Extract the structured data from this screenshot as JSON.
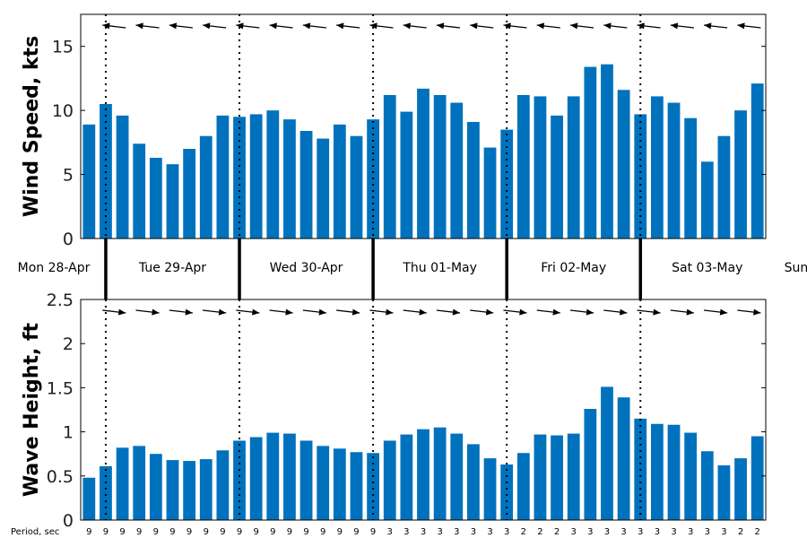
{
  "colors": {
    "bar": "#0072BD",
    "axis": "#000000",
    "arrow": "#000000"
  },
  "chart_data": [
    {
      "type": "bar",
      "ylabel": "Wind Speed, kts",
      "ylim": [
        0,
        17.5
      ],
      "yticks": [
        0,
        5,
        10,
        15
      ],
      "values": [
        8.9,
        10.5,
        9.6,
        7.4,
        6.3,
        5.8,
        7.0,
        8.0,
        9.6,
        9.5,
        9.7,
        10.0,
        9.3,
        8.4,
        7.8,
        8.9,
        8.0,
        9.3,
        11.2,
        9.9,
        11.7,
        11.2,
        10.6,
        9.1,
        7.1,
        8.5,
        11.2,
        11.1,
        9.6,
        11.1,
        13.4,
        13.6,
        11.6,
        9.7,
        11.1,
        10.6,
        9.4,
        6.0,
        8.0,
        10.0,
        12.1
      ],
      "direction_arrows": "arrows at top of panel, pointing roughly west (from east)"
    },
    {
      "type": "bar",
      "ylabel": "Wave Height, ft",
      "ylim": [
        0,
        2.5
      ],
      "yticks": [
        "0",
        "0.5",
        "1",
        "1.5",
        "2",
        "2.5"
      ],
      "values": [
        0.48,
        0.61,
        0.82,
        0.84,
        0.75,
        0.68,
        0.67,
        0.69,
        0.79,
        0.9,
        0.94,
        0.99,
        0.98,
        0.9,
        0.84,
        0.81,
        0.77,
        0.76,
        0.9,
        0.97,
        1.03,
        1.05,
        0.98,
        0.86,
        0.7,
        0.63,
        0.76,
        0.97,
        0.96,
        0.98,
        1.26,
        1.51,
        1.39,
        1.15,
        1.09,
        1.08,
        0.99,
        0.78,
        0.62,
        0.7,
        0.95
      ],
      "direction_arrows": "arrows at top of panel, pointing roughly east",
      "period_label": "Period, sec",
      "periods": [
        "9",
        "9",
        "9",
        "9",
        "9",
        "9",
        "9",
        "9",
        "9",
        "9",
        "9",
        "9",
        "9",
        "9",
        "9",
        "9",
        "9",
        "9",
        "3",
        "3",
        "3",
        "3",
        "3",
        "3",
        "3",
        "3",
        "2",
        "2",
        "2",
        "3",
        "3",
        "3",
        "3",
        "3",
        "3",
        "3",
        "3",
        "3",
        "3",
        "2",
        "2"
      ]
    }
  ],
  "day_labels": [
    "Mon 28-Apr",
    "Tue 29-Apr",
    "Wed 30-Apr",
    "Thu 01-May",
    "Fri 02-May",
    "Sat 03-May",
    "Sun"
  ]
}
